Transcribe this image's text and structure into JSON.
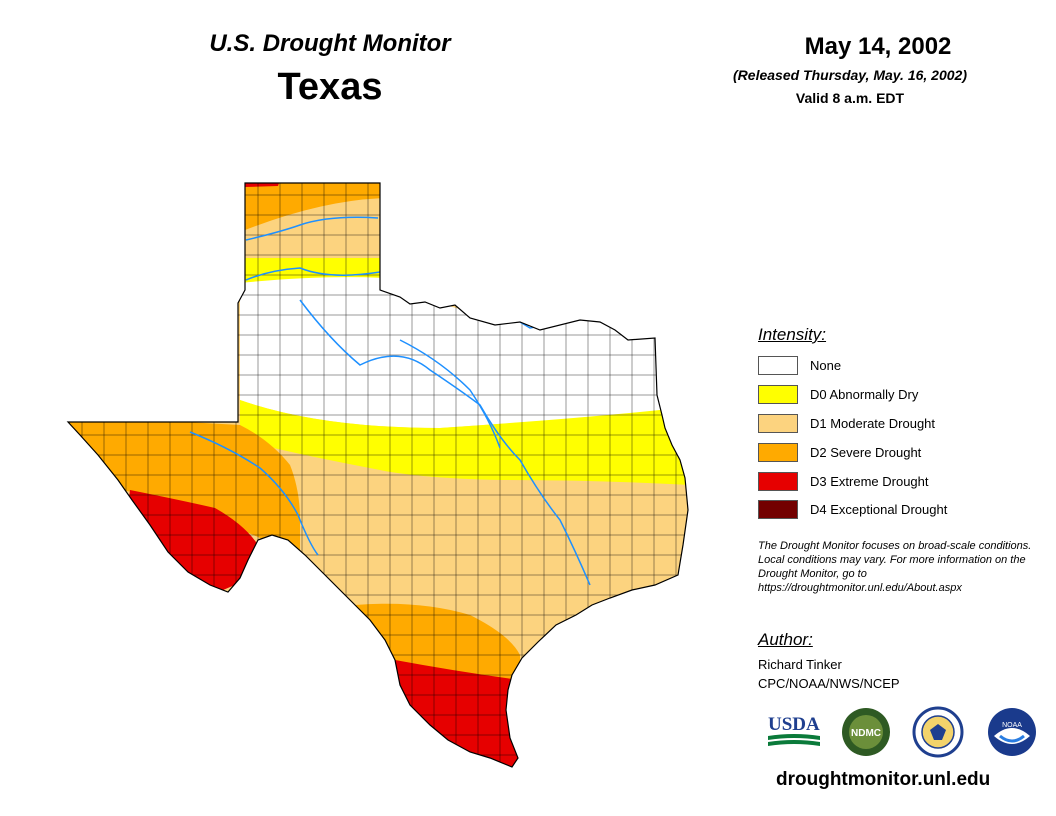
{
  "header": {
    "monitor_title": "U.S. Drought Monitor",
    "state": "Texas",
    "date": "May 14, 2002",
    "released": "(Released Thursday, May. 16, 2002)",
    "valid": "Valid 8 a.m. EDT"
  },
  "legend": {
    "title": "Intensity:",
    "items": [
      {
        "label": "None",
        "color": "#ffffff"
      },
      {
        "label": "D0 Abnormally Dry",
        "color": "#ffff00"
      },
      {
        "label": "D1 Moderate Drought",
        "color": "#fcd37f"
      },
      {
        "label": "D2 Severe Drought",
        "color": "#ffaa00"
      },
      {
        "label": "D3 Extreme Drought",
        "color": "#e60000"
      },
      {
        "label": "D4 Exceptional Drought",
        "color": "#730000"
      }
    ]
  },
  "disclaimer": "The Drought Monitor focuses on broad-scale conditions. Local conditions may vary. For more information on the Drought Monitor, go to https://droughtmonitor.unl.edu/About.aspx",
  "author": {
    "title": "Author:",
    "name": "Richard Tinker",
    "org": "CPC/NOAA/NWS/NCEP"
  },
  "logos": {
    "usda": "USDA",
    "ndmc": "NDMC",
    "noaa": "NOAA"
  },
  "website": "droughtmonitor.unl.edu",
  "colors": {
    "river": "#1e90ff",
    "county_line": "#000000"
  }
}
